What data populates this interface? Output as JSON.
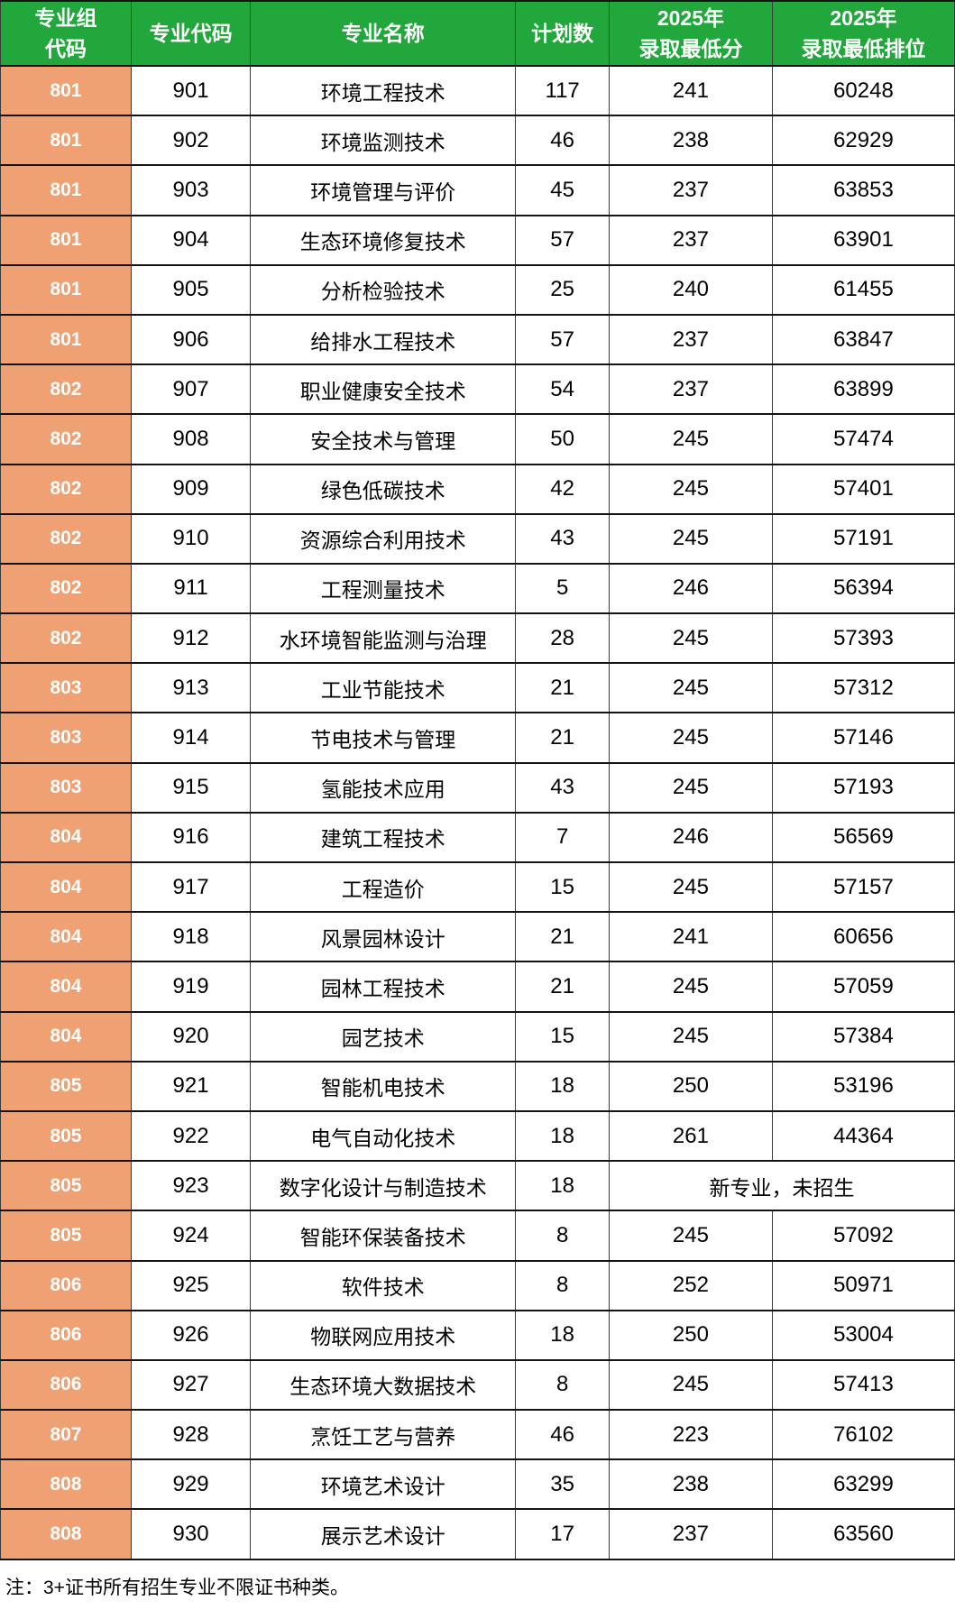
{
  "theme": {
    "header_bg": "#22a73c",
    "header_text": "#ffffff",
    "group_col_bg": "#f0a173",
    "group_col_text": "#ffffff",
    "cell_bg": "#ffffff",
    "cell_text": "#000000",
    "border_color": "#141414"
  },
  "table": {
    "columns": [
      {
        "key": "group_code",
        "label": "专业组\n代码"
      },
      {
        "key": "major_code",
        "label": "专业代码"
      },
      {
        "key": "major_name",
        "label": "专业名称"
      },
      {
        "key": "plan_count",
        "label": "计划数"
      },
      {
        "key": "min_score_2025",
        "label": "2025年\n录取最低分"
      },
      {
        "key": "min_rank_2025",
        "label": "2025年\n录取最低排位"
      }
    ],
    "rows": [
      {
        "group_code": "801",
        "major_code": "901",
        "major_name": "环境工程技术",
        "plan_count": "117",
        "min_score": "241",
        "min_rank": "60248"
      },
      {
        "group_code": "801",
        "major_code": "902",
        "major_name": "环境监测技术",
        "plan_count": "46",
        "min_score": "238",
        "min_rank": "62929"
      },
      {
        "group_code": "801",
        "major_code": "903",
        "major_name": "环境管理与评价",
        "plan_count": "45",
        "min_score": "237",
        "min_rank": "63853"
      },
      {
        "group_code": "801",
        "major_code": "904",
        "major_name": "生态环境修复技术",
        "plan_count": "57",
        "min_score": "237",
        "min_rank": "63901"
      },
      {
        "group_code": "801",
        "major_code": "905",
        "major_name": "分析检验技术",
        "plan_count": "25",
        "min_score": "240",
        "min_rank": "61455"
      },
      {
        "group_code": "801",
        "major_code": "906",
        "major_name": "给排水工程技术",
        "plan_count": "57",
        "min_score": "237",
        "min_rank": "63847"
      },
      {
        "group_code": "802",
        "major_code": "907",
        "major_name": "职业健康安全技术",
        "plan_count": "54",
        "min_score": "237",
        "min_rank": "63899"
      },
      {
        "group_code": "802",
        "major_code": "908",
        "major_name": "安全技术与管理",
        "plan_count": "50",
        "min_score": "245",
        "min_rank": "57474"
      },
      {
        "group_code": "802",
        "major_code": "909",
        "major_name": "绿色低碳技术",
        "plan_count": "42",
        "min_score": "245",
        "min_rank": "57401"
      },
      {
        "group_code": "802",
        "major_code": "910",
        "major_name": "资源综合利用技术",
        "plan_count": "43",
        "min_score": "245",
        "min_rank": "57191"
      },
      {
        "group_code": "802",
        "major_code": "911",
        "major_name": "工程测量技术",
        "plan_count": "5",
        "min_score": "246",
        "min_rank": "56394"
      },
      {
        "group_code": "802",
        "major_code": "912",
        "major_name": "水环境智能监测与治理",
        "plan_count": "28",
        "min_score": "245",
        "min_rank": "57393"
      },
      {
        "group_code": "803",
        "major_code": "913",
        "major_name": "工业节能技术",
        "plan_count": "21",
        "min_score": "245",
        "min_rank": "57312"
      },
      {
        "group_code": "803",
        "major_code": "914",
        "major_name": "节电技术与管理",
        "plan_count": "21",
        "min_score": "245",
        "min_rank": "57146"
      },
      {
        "group_code": "803",
        "major_code": "915",
        "major_name": "氢能技术应用",
        "plan_count": "43",
        "min_score": "245",
        "min_rank": "57193"
      },
      {
        "group_code": "804",
        "major_code": "916",
        "major_name": "建筑工程技术",
        "plan_count": "7",
        "min_score": "246",
        "min_rank": "56569"
      },
      {
        "group_code": "804",
        "major_code": "917",
        "major_name": "工程造价",
        "plan_count": "15",
        "min_score": "245",
        "min_rank": "57157"
      },
      {
        "group_code": "804",
        "major_code": "918",
        "major_name": "风景园林设计",
        "plan_count": "21",
        "min_score": "241",
        "min_rank": "60656"
      },
      {
        "group_code": "804",
        "major_code": "919",
        "major_name": "园林工程技术",
        "plan_count": "21",
        "min_score": "245",
        "min_rank": "57059"
      },
      {
        "group_code": "804",
        "major_code": "920",
        "major_name": "园艺技术",
        "plan_count": "15",
        "min_score": "245",
        "min_rank": "57384"
      },
      {
        "group_code": "805",
        "major_code": "921",
        "major_name": "智能机电技术",
        "plan_count": "18",
        "min_score": "250",
        "min_rank": "53196"
      },
      {
        "group_code": "805",
        "major_code": "922",
        "major_name": "电气自动化技术",
        "plan_count": "18",
        "min_score": "261",
        "min_rank": "44364"
      },
      {
        "group_code": "805",
        "major_code": "923",
        "major_name": "数字化设计与制造技术",
        "plan_count": "18",
        "merged_note": "新专业，未招生"
      },
      {
        "group_code": "805",
        "major_code": "924",
        "major_name": "智能环保装备技术",
        "plan_count": "8",
        "min_score": "245",
        "min_rank": "57092"
      },
      {
        "group_code": "806",
        "major_code": "925",
        "major_name": "软件技术",
        "plan_count": "8",
        "min_score": "252",
        "min_rank": "50971"
      },
      {
        "group_code": "806",
        "major_code": "926",
        "major_name": "物联网应用技术",
        "plan_count": "18",
        "min_score": "250",
        "min_rank": "53004"
      },
      {
        "group_code": "806",
        "major_code": "927",
        "major_name": "生态环境大数据技术",
        "plan_count": "8",
        "min_score": "245",
        "min_rank": "57413"
      },
      {
        "group_code": "807",
        "major_code": "928",
        "major_name": "烹饪工艺与营养",
        "plan_count": "46",
        "min_score": "223",
        "min_rank": "76102"
      },
      {
        "group_code": "808",
        "major_code": "929",
        "major_name": "环境艺术设计",
        "plan_count": "35",
        "min_score": "238",
        "min_rank": "63299"
      },
      {
        "group_code": "808",
        "major_code": "930",
        "major_name": "展示艺术设计",
        "plan_count": "17",
        "min_score": "237",
        "min_rank": "63560"
      }
    ]
  },
  "footnote": "注：3+证书所有招生专业不限证书种类。"
}
